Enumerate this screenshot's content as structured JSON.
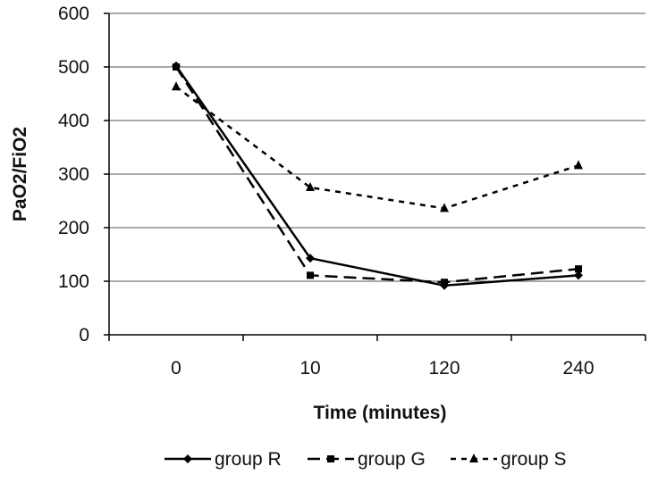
{
  "chart_data": {
    "type": "line",
    "title": "",
    "xlabel": "Time (minutes)",
    "ylabel": "PaO2/FiO2",
    "categories": [
      "0",
      "10",
      "120",
      "240"
    ],
    "ylim": [
      0,
      600
    ],
    "yticks": [
      0,
      100,
      200,
      300,
      400,
      500,
      600
    ],
    "grid": "horizontal",
    "legend_position": "bottom",
    "series": [
      {
        "name": "group R",
        "values": [
          502,
          143,
          92,
          111
        ],
        "color": "#000000",
        "marker": "diamond",
        "dash": "solid"
      },
      {
        "name": "group G",
        "values": [
          500,
          111,
          98,
          123
        ],
        "color": "#000000",
        "marker": "square",
        "dash": "long-dash"
      },
      {
        "name": "group S",
        "values": [
          463,
          275,
          236,
          316
        ],
        "color": "#000000",
        "marker": "triangle",
        "dash": "dotted"
      }
    ]
  }
}
